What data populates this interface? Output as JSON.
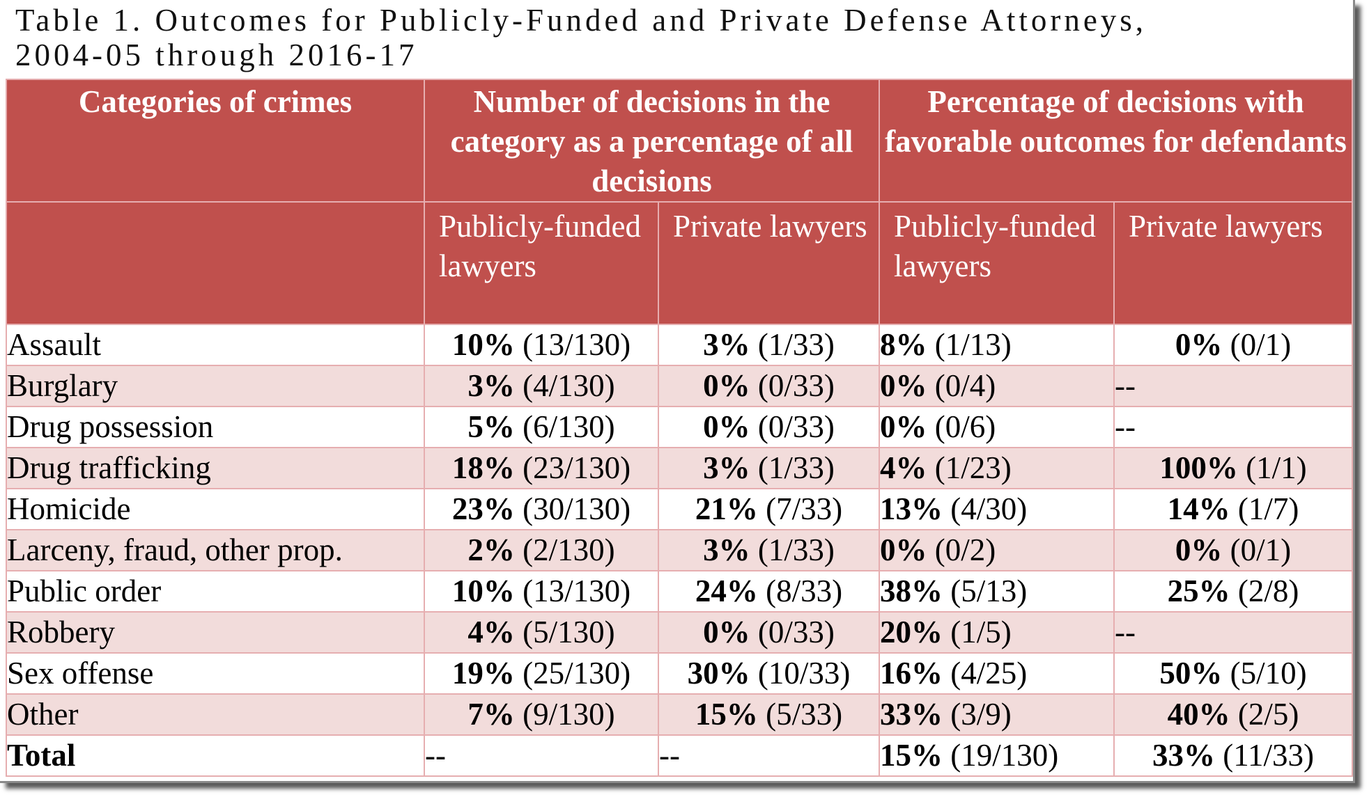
{
  "caption": {
    "line1": "Table 1.  Outcomes for Publicly-Funded and Private Defense Attorneys,",
    "line2": "2004-05 through 2016-17"
  },
  "header": {
    "categories": "Categories of crimes",
    "group_share": "Number of decisions in the category as a percentage of all decisions",
    "group_favorable": "Percentage of decisions with favorable outcomes for defendants",
    "sub_public": "Publicly-funded lawyers",
    "sub_private": "Private lawyers"
  },
  "rows": [
    {
      "category": "Assault",
      "share_public": {
        "pct": "10%",
        "frac": "(13/130)"
      },
      "share_private": {
        "pct": "3%",
        "frac": "(1/33)"
      },
      "fav_public": {
        "pct": "8%",
        "frac": "(1/13)"
      },
      "fav_private": {
        "pct": "0%",
        "frac": "(0/1)"
      }
    },
    {
      "category": "Burglary",
      "share_public": {
        "pct": "3%",
        "frac": "(4/130)"
      },
      "share_private": {
        "pct": "0%",
        "frac": "(0/33)"
      },
      "fav_public": {
        "pct": "0%",
        "frac": "(0/4)"
      },
      "fav_private": {
        "pct": "",
        "frac": "--"
      }
    },
    {
      "category": "Drug possession",
      "share_public": {
        "pct": "5%",
        "frac": "(6/130)"
      },
      "share_private": {
        "pct": "0%",
        "frac": "(0/33)"
      },
      "fav_public": {
        "pct": "0%",
        "frac": "(0/6)"
      },
      "fav_private": {
        "pct": "",
        "frac": "--"
      }
    },
    {
      "category": "Drug trafficking",
      "share_public": {
        "pct": "18%",
        "frac": "(23/130)"
      },
      "share_private": {
        "pct": "3%",
        "frac": "(1/33)"
      },
      "fav_public": {
        "pct": "4%",
        "frac": "(1/23)"
      },
      "fav_private": {
        "pct": "100%",
        "frac": "(1/1)"
      }
    },
    {
      "category": "Homicide",
      "share_public": {
        "pct": "23%",
        "frac": "(30/130)"
      },
      "share_private": {
        "pct": "21%",
        "frac": "(7/33)"
      },
      "fav_public": {
        "pct": "13%",
        "frac": "(4/30)"
      },
      "fav_private": {
        "pct": "14%",
        "frac": "(1/7)"
      }
    },
    {
      "category": "Larceny, fraud, other prop.",
      "share_public": {
        "pct": "2%",
        "frac": "(2/130)"
      },
      "share_private": {
        "pct": "3%",
        "frac": "(1/33)"
      },
      "fav_public": {
        "pct": "0%",
        "frac": "(0/2)"
      },
      "fav_private": {
        "pct": "0%",
        "frac": "(0/1)"
      }
    },
    {
      "category": "Public order",
      "share_public": {
        "pct": "10%",
        "frac": "(13/130)"
      },
      "share_private": {
        "pct": "24%",
        "frac": "(8/33)"
      },
      "fav_public": {
        "pct": "38%",
        "frac": "(5/13)"
      },
      "fav_private": {
        "pct": "25%",
        "frac": "(2/8)"
      }
    },
    {
      "category": "Robbery",
      "share_public": {
        "pct": "4%",
        "frac": "(5/130)"
      },
      "share_private": {
        "pct": "0%",
        "frac": "(0/33)"
      },
      "fav_public": {
        "pct": "20%",
        "frac": "(1/5)"
      },
      "fav_private": {
        "pct": "",
        "frac": "--"
      }
    },
    {
      "category": "Sex offense",
      "share_public": {
        "pct": "19%",
        "frac": "(25/130)"
      },
      "share_private": {
        "pct": "30%",
        "frac": "(10/33)"
      },
      "fav_public": {
        "pct": "16%",
        "frac": "(4/25)"
      },
      "fav_private": {
        "pct": "50%",
        "frac": "(5/10)"
      }
    },
    {
      "category": "Other",
      "share_public": {
        "pct": "7%",
        "frac": "(9/130)"
      },
      "share_private": {
        "pct": "15%",
        "frac": "(5/33)"
      },
      "fav_public": {
        "pct": "33%",
        "frac": "(3/9)"
      },
      "fav_private": {
        "pct": "40%",
        "frac": "(2/5)"
      }
    }
  ],
  "total": {
    "category": "Total",
    "share_public": {
      "pct": "",
      "frac": "--"
    },
    "share_private": {
      "pct": "",
      "frac": "--"
    },
    "fav_public": {
      "pct": "15%",
      "frac": "(19/130)"
    },
    "fav_private": {
      "pct": "33%",
      "frac": "(11/33)"
    }
  },
  "colors": {
    "header_bg": "#c0504d",
    "header_text": "#ffffff",
    "band_row": "#f2dcdb",
    "grid_line": "#e6aeb0"
  }
}
